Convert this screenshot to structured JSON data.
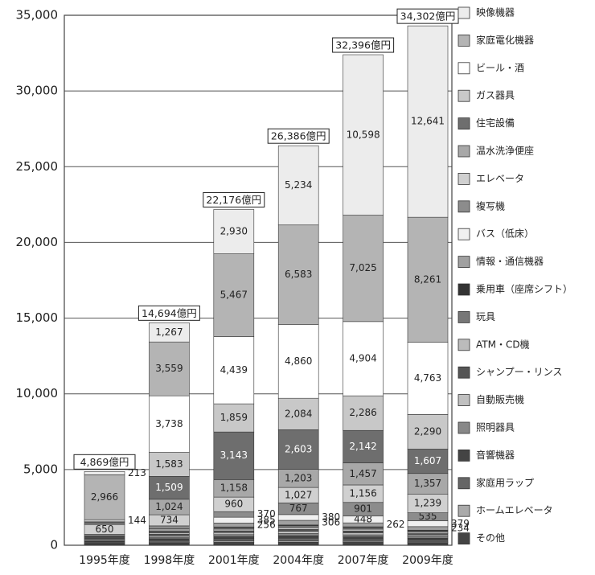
{
  "chart_data": {
    "type": "stacked_bar",
    "categories": [
      "1995年度",
      "1998年度",
      "2001年度",
      "2004年度",
      "2007年度",
      "2009年度"
    ],
    "series": [
      {
        "name": "映像機器",
        "color": "#ececec",
        "values": [
          213,
          1267,
          2930,
          5234,
          10598,
          12641
        ],
        "value_labels": [
          "213",
          "1,267",
          "2,930",
          "5,234",
          "10,598",
          "12,641"
        ]
      },
      {
        "name": "家庭電化機器",
        "color": "#b4b4b4",
        "values": [
          2966,
          3559,
          5467,
          6583,
          7025,
          8261
        ],
        "value_labels": [
          "2,966",
          "3,559",
          "5,467",
          "6,583",
          "7,025",
          "8,261"
        ]
      },
      {
        "name": "ビール・酒",
        "color": "#ffffff",
        "values": [
          0,
          3738,
          4439,
          4860,
          4904,
          4763
        ],
        "value_labels": [
          null,
          "3,738",
          "4,439",
          "4,860",
          "4,904",
          "4,763"
        ]
      },
      {
        "name": "ガス器具",
        "color": "#c8c8c8",
        "values": [
          144,
          1583,
          1859,
          2084,
          2286,
          2290
        ],
        "value_labels": [
          "144",
          "1,583",
          "1,859",
          "2,084",
          "2,286",
          "2,290"
        ]
      },
      {
        "name": "住宅設備",
        "color": "#6e6e6e",
        "values": [
          100,
          1509,
          3143,
          2603,
          2142,
          1607
        ],
        "value_labels": [
          null,
          "1,509",
          "3,143",
          "2,603",
          "2,142",
          "1,607"
        ]
      },
      {
        "name": "温水洗浄便座",
        "color": "#a8a8a8",
        "values": [
          80,
          1024,
          1158,
          1203,
          1457,
          1357
        ],
        "value_labels": [
          null,
          "1,024",
          "1,158",
          "1,203",
          "1,457",
          "1,357"
        ]
      },
      {
        "name": "エレベータ",
        "color": "#d0d0d0",
        "values": [
          650,
          734,
          960,
          1027,
          1156,
          1239
        ],
        "value_labels": [
          "650",
          "734",
          "960",
          "1,027",
          "1,156",
          "1,239"
        ]
      },
      {
        "name": "複写機",
        "color": "#8c8c8c",
        "values": [
          100,
          200,
          370,
          767,
          901,
          535
        ],
        "value_labels": [
          null,
          null,
          "370",
          "767",
          "901",
          "535"
        ]
      },
      {
        "name": "バス（低床）",
        "color": "#f0f0f0",
        "values": [
          0,
          0,
          385,
          380,
          448,
          379
        ],
        "value_labels": [
          null,
          null,
          "385",
          "380",
          "448",
          "379"
        ]
      },
      {
        "name": "情報・通信機器",
        "color": "#a0a0a0",
        "values": [
          50,
          150,
          256,
          306,
          262,
          234
        ],
        "value_labels": [
          null,
          null,
          "256",
          "306",
          "262",
          "234"
        ]
      },
      {
        "name": "乗用車（座席シフト）",
        "color": "#333333",
        "values": [
          0,
          20,
          30,
          40,
          40,
          40
        ],
        "value_labels": [
          null,
          null,
          null,
          null,
          null,
          null
        ]
      },
      {
        "name": "玩具",
        "color": "#777777",
        "values": [
          60,
          90,
          110,
          120,
          110,
          90
        ],
        "value_labels": [
          null,
          null,
          null,
          null,
          null,
          null
        ]
      },
      {
        "name": "ATM・CD機",
        "color": "#bbbbbb",
        "values": [
          50,
          100,
          120,
          140,
          130,
          100
        ],
        "value_labels": [
          null,
          null,
          null,
          null,
          null,
          null
        ]
      },
      {
        "name": "シャンプー・リンス",
        "color": "#555555",
        "values": [
          60,
          90,
          110,
          120,
          110,
          90
        ],
        "value_labels": [
          null,
          null,
          null,
          null,
          null,
          null
        ]
      },
      {
        "name": "自動販売機",
        "color": "#c0c0c0",
        "values": [
          80,
          100,
          140,
          150,
          140,
          110
        ],
        "value_labels": [
          null,
          null,
          null,
          null,
          null,
          null
        ]
      },
      {
        "name": "照明器具",
        "color": "#888888",
        "values": [
          50,
          100,
          130,
          140,
          130,
          100
        ],
        "value_labels": [
          null,
          null,
          null,
          null,
          null,
          null
        ]
      },
      {
        "name": "音響機器",
        "color": "#444444",
        "values": [
          60,
          110,
          140,
          160,
          140,
          120
        ],
        "value_labels": [
          null,
          null,
          null,
          null,
          null,
          null
        ]
      },
      {
        "name": "家庭用ラップ",
        "color": "#666666",
        "values": [
          80,
          120,
          150,
          170,
          150,
          130
        ],
        "value_labels": [
          null,
          null,
          null,
          null,
          null,
          null
        ]
      },
      {
        "name": "ホームエレベータ",
        "color": "#aaaaaa",
        "values": [
          26,
          50,
          89,
          99,
          77,
          56
        ],
        "value_labels": [
          null,
          null,
          null,
          null,
          null,
          null
        ]
      },
      {
        "name": "その他",
        "color": "#444444",
        "values": [
          100,
          150,
          190,
          200,
          190,
          160
        ],
        "value_labels": [
          null,
          null,
          null,
          null,
          null,
          null
        ]
      }
    ],
    "totals": {
      "values": [
        4869,
        14694,
        22176,
        26386,
        32396,
        34302
      ],
      "value_labels": [
        "4,869億円",
        "14,694億円",
        "22,176億円",
        "26,386億円",
        "32,396億円",
        "34,302億円"
      ]
    },
    "ylim": [
      0,
      35000
    ],
    "yticks": [
      0,
      {
        "value": 5000,
        "label": "5,000"
      },
      {
        "value": 10000,
        "label": "10,000"
      },
      {
        "value": 15000,
        "label": "15,000"
      },
      {
        "value": 20000,
        "label": "20,000"
      },
      {
        "value": 25000,
        "label": "25,000"
      },
      {
        "value": 30000,
        "label": "30,000"
      },
      {
        "value": 35000,
        "label": "35,000"
      }
    ],
    "grid": true,
    "legend": "right"
  }
}
